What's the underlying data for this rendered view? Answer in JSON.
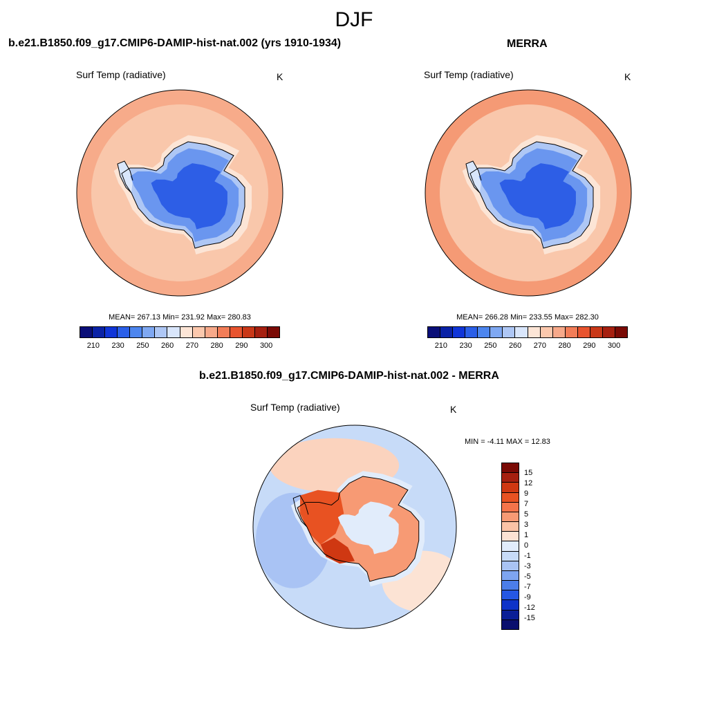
{
  "page": {
    "title": "DJF"
  },
  "colors": {
    "abs_scale": [
      "#0a0f78",
      "#0a22a6",
      "#1035d8",
      "#2b5fe8",
      "#4d86ef",
      "#7fa8f2",
      "#aec7f5",
      "#d9e6fb",
      "#fce5d6",
      "#fbc8ad",
      "#f7a98a",
      "#f27d58",
      "#e8542f",
      "#c93818",
      "#a62010",
      "#7a0a05"
    ],
    "diff_scale": [
      "#7a0a05",
      "#a62010",
      "#cf3812",
      "#e85222",
      "#f4744a",
      "#f79a74",
      "#fbc3a6",
      "#fce3d4",
      "#e1ecfb",
      "#c7dbf8",
      "#a9c3f4",
      "#7ea5f0",
      "#4c7ee9",
      "#2557e3",
      "#0e33c8",
      "#0a1f96",
      "#0a0f6e"
    ],
    "ocean_mid": "#f9c7ab",
    "ocean_far": "#f6a683",
    "ice_mid": "#6a96ef",
    "ice_deep": "#2d5ee6",
    "coast": "#000000"
  },
  "panels": [
    {
      "title": "b.e21.B1850.f09_g17.CMIP6-DAMIP-hist-nat.002 (yrs 1910-1934)",
      "variable": "Surf Temp (radiative)",
      "units": "K",
      "stats": "MEAN= 267.13  Min= 231.92  Max= 280.83",
      "colorbar_ticks": [
        "210",
        "230",
        "250",
        "260",
        "270",
        "280",
        "290",
        "300"
      ]
    },
    {
      "title": "MERRA",
      "variable": "Surf Temp (radiative)",
      "units": "K",
      "stats": "MEAN= 266.28  Min= 233.55  Max= 282.30",
      "colorbar_ticks": [
        "210",
        "230",
        "250",
        "260",
        "270",
        "280",
        "290",
        "300"
      ]
    },
    {
      "title": "b.e21.B1850.f09_g17.CMIP6-DAMIP-hist-nat.002 - MERRA",
      "variable": "Surf Temp (radiative)",
      "units": "K",
      "stats": "MIN =  -4.11 MAX =  12.83",
      "colorbar_ticks": [
        "15",
        "12",
        "9",
        "7",
        "5",
        "3",
        "1",
        "0",
        "-1",
        "-3",
        "-5",
        "-7",
        "-9",
        "-12",
        "-15"
      ]
    }
  ]
}
